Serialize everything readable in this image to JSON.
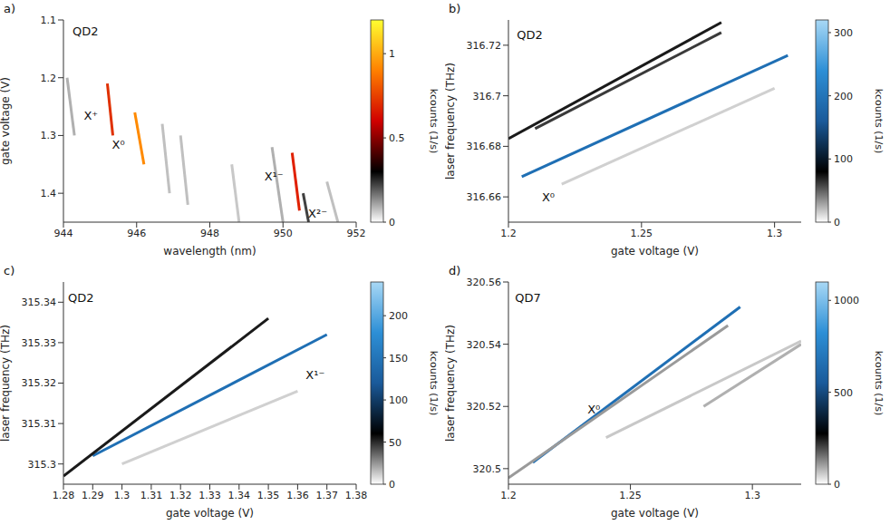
{
  "chart_data": [
    {
      "type": "line",
      "panel": "a)",
      "x_label": "wavelength (nm)",
      "y_label": "gate voltage (V)",
      "xlim": [
        944,
        952
      ],
      "xticks": [
        944,
        946,
        948,
        950,
        952
      ],
      "ylim": [
        1.1,
        1.45
      ],
      "yticks": [
        1.1,
        1.2,
        1.3,
        1.4
      ],
      "y_reversed": true,
      "series": [
        {
          "color": "#e03000",
          "x": [
            945.2,
            945.35
          ],
          "values": [
            1.21,
            1.3
          ]
        },
        {
          "color": "#ff8a00",
          "x": [
            945.95,
            946.2
          ],
          "values": [
            1.26,
            1.35
          ]
        },
        {
          "color": "#e02000",
          "x": [
            950.25,
            950.45
          ],
          "values": [
            1.33,
            1.43
          ]
        },
        {
          "color": "#404040",
          "x": [
            950.55,
            950.7
          ],
          "values": [
            1.4,
            1.45
          ]
        },
        {
          "color": "#b0b0b0",
          "x": [
            944.1,
            944.3
          ],
          "values": [
            1.2,
            1.3
          ]
        },
        {
          "color": "#c0c0c0",
          "x": [
            946.7,
            946.9
          ],
          "values": [
            1.28,
            1.4
          ]
        },
        {
          "color": "#c0c0c0",
          "x": [
            947.2,
            947.4
          ],
          "values": [
            1.3,
            1.42
          ]
        },
        {
          "color": "#b0b0b0",
          "x": [
            949.7,
            950.0
          ],
          "values": [
            1.32,
            1.45
          ]
        },
        {
          "color": "#c0c0c0",
          "x": [
            951.2,
            951.5
          ],
          "values": [
            1.38,
            1.45
          ]
        },
        {
          "color": "#c8c8c8",
          "x": [
            948.6,
            948.8
          ],
          "values": [
            1.35,
            1.45
          ]
        }
      ],
      "annotations": [
        {
          "text": "QD2",
          "x": 944.6,
          "y": 1.12
        },
        {
          "text": "X⁺",
          "x": 944.75,
          "y": 1.265
        },
        {
          "text": "X⁰",
          "x": 945.5,
          "y": 1.315
        },
        {
          "text": "X¹⁻",
          "x": 949.75,
          "y": 1.37
        },
        {
          "text": "X²⁻",
          "x": 950.95,
          "y": 1.435
        }
      ],
      "colorbar": {
        "label": "kcounts (1/s)",
        "range": [
          0,
          1.2
        ],
        "ticks": [
          0,
          0.5,
          1
        ],
        "colors": [
          "#ffffff",
          "#000000",
          "#d00000",
          "#ff8000",
          "#ffff30"
        ]
      }
    },
    {
      "type": "line",
      "panel": "b)",
      "x_label": "gate voltage (V)",
      "y_label": "laser frequency (THz)",
      "xlim": [
        1.2,
        1.31
      ],
      "xticks": [
        1.2,
        1.25,
        1.3
      ],
      "ylim": [
        316.65,
        316.73
      ],
      "yticks": [
        316.66,
        316.68,
        316.7,
        316.72
      ],
      "series": [
        {
          "color": "#1f6fb4",
          "x": [
            1.205,
            1.305
          ],
          "values": [
            316.668,
            316.716
          ]
        },
        {
          "color": "#1a1a1a",
          "x": [
            1.2,
            1.28
          ],
          "values": [
            316.683,
            316.729
          ]
        },
        {
          "color": "#3a3a3a",
          "x": [
            1.21,
            1.28
          ],
          "values": [
            316.687,
            316.725
          ]
        },
        {
          "color": "#d0d0d0",
          "x": [
            1.22,
            1.3
          ],
          "values": [
            316.665,
            316.703
          ]
        }
      ],
      "annotations": [
        {
          "text": "QD2",
          "x": 1.208,
          "y": 316.724
        },
        {
          "text": "X⁰",
          "x": 1.215,
          "y": 316.66
        }
      ],
      "colorbar": {
        "label": "kcounts (1/s)",
        "range": [
          0,
          320
        ],
        "ticks": [
          0,
          100,
          200,
          300
        ],
        "colors": [
          "#ffffff",
          "#000000",
          "#1a5a9a",
          "#2d8fd6",
          "#a8d8f5"
        ]
      }
    },
    {
      "type": "line",
      "panel": "c)",
      "x_label": "gate voltage (V)",
      "y_label": "laser frequency (THz)",
      "xlim": [
        1.28,
        1.38
      ],
      "xticks": [
        1.28,
        1.29,
        1.3,
        1.31,
        1.32,
        1.33,
        1.34,
        1.35,
        1.36,
        1.37,
        1.38
      ],
      "ylim": [
        315.295,
        315.345
      ],
      "yticks": [
        315.3,
        315.31,
        315.32,
        315.33,
        315.34
      ],
      "series": [
        {
          "color": "#1f6fb4",
          "x": [
            1.29,
            1.37
          ],
          "values": [
            315.302,
            315.332
          ]
        },
        {
          "color": "#1a1a1a",
          "x": [
            1.28,
            1.35
          ],
          "values": [
            315.297,
            315.336
          ]
        },
        {
          "color": "#d0d0d0",
          "x": [
            1.3,
            1.36
          ],
          "values": [
            315.3,
            315.318
          ]
        }
      ],
      "annotations": [
        {
          "text": "QD2",
          "x": 1.286,
          "y": 315.341
        },
        {
          "text": "X¹⁻",
          "x": 1.366,
          "y": 315.322
        }
      ],
      "colorbar": {
        "label": "kcounts (1/s)",
        "range": [
          0,
          240
        ],
        "ticks": [
          0,
          50,
          100,
          150,
          200
        ],
        "colors": [
          "#ffffff",
          "#000000",
          "#1a5a9a",
          "#2d8fd6",
          "#a8d8f5"
        ]
      }
    },
    {
      "type": "line",
      "panel": "d)",
      "x_label": "gate voltage (V)",
      "y_label": "laser frequency (THz)",
      "xlim": [
        1.2,
        1.32
      ],
      "xticks": [
        1.2,
        1.25,
        1.3
      ],
      "ylim": [
        320.495,
        320.56
      ],
      "yticks": [
        320.5,
        320.52,
        320.54,
        320.56
      ],
      "series": [
        {
          "color": "#1f6fb4",
          "x": [
            1.21,
            1.295
          ],
          "values": [
            320.502,
            320.552
          ]
        },
        {
          "color": "#9a9a9a",
          "x": [
            1.2,
            1.29
          ],
          "values": [
            320.497,
            320.546
          ]
        },
        {
          "color": "#c8c8c8",
          "x": [
            1.24,
            1.32
          ],
          "values": [
            320.51,
            320.541
          ]
        },
        {
          "color": "#b0b0b0",
          "x": [
            1.28,
            1.32
          ],
          "values": [
            320.52,
            320.54
          ]
        }
      ],
      "annotations": [
        {
          "text": "QD7",
          "x": 1.208,
          "y": 320.555
        },
        {
          "text": "X⁰",
          "x": 1.235,
          "y": 320.519
        }
      ],
      "colorbar": {
        "label": "kcounts (1/s)",
        "range": [
          0,
          1100
        ],
        "ticks": [
          0,
          500,
          1000
        ],
        "colors": [
          "#ffffff",
          "#000000",
          "#1a5a9a",
          "#2d8fd6",
          "#a8d8f5"
        ]
      }
    }
  ]
}
